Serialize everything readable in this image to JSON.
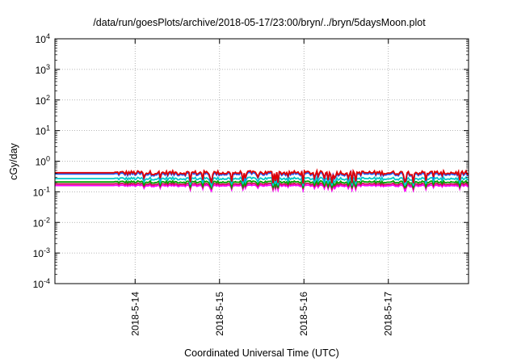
{
  "chart_data": {
    "type": "line",
    "title": "/data/run/goesPlots/archive/2018-05-17/23:00/bryn/../bryn/5daysMoon.plot",
    "xlabel": "Coordinated Universal Time (UTC)",
    "ylabel": "cGy/day",
    "yscale": "log",
    "ylim": [
      0.0001,
      10000
    ],
    "y_ticks": [
      {
        "value": 0.0001,
        "base": "10",
        "exp": "-4"
      },
      {
        "value": 0.001,
        "base": "10",
        "exp": "-3"
      },
      {
        "value": 0.01,
        "base": "10",
        "exp": "-2"
      },
      {
        "value": 0.1,
        "base": "10",
        "exp": "-1"
      },
      {
        "value": 1,
        "base": "10",
        "exp": "0"
      },
      {
        "value": 10,
        "base": "10",
        "exp": "1"
      },
      {
        "value": 100,
        "base": "10",
        "exp": "2"
      },
      {
        "value": 1000,
        "base": "10",
        "exp": "3"
      },
      {
        "value": 10000,
        "base": "10",
        "exp": "4"
      }
    ],
    "xlim_days": [
      -0.95,
      3.95
    ],
    "x_ticks": [
      {
        "day": 0,
        "label": "2018-5-14"
      },
      {
        "day": 1,
        "label": "2018-5-15"
      },
      {
        "day": 2,
        "label": "2018-5-16"
      },
      {
        "day": 3,
        "label": "2018-5-17"
      }
    ],
    "grid": true,
    "legend": "none",
    "flat_until_day": -0.25,
    "series": [
      {
        "color": "#ff00ff",
        "level": 0.16,
        "fill_to": 0.065
      },
      {
        "color": "#cc1155",
        "level": 0.18
      },
      {
        "color": "#00a000",
        "level": 0.21
      },
      {
        "color": "#00c8c8",
        "level": 0.27
      },
      {
        "color": "#7b00a8",
        "level": 0.4
      },
      {
        "color": "#2060ff",
        "level": 0.38
      },
      {
        "color": "#e00000",
        "level": 0.42
      }
    ]
  }
}
